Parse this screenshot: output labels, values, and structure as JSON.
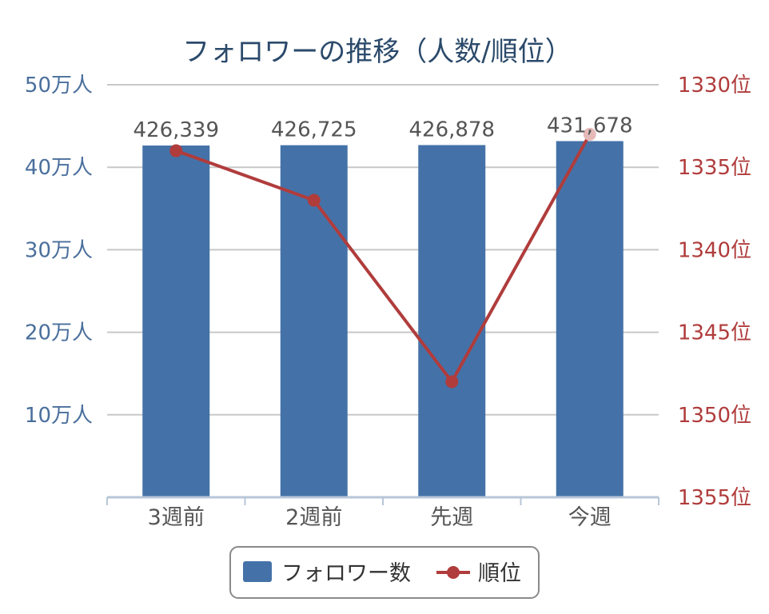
{
  "chart_data": {
    "type": "bar+line",
    "title": "フォロワーの推移（人数/順位）",
    "categories": [
      "3週前",
      "2週前",
      "先週",
      "今週"
    ],
    "left_axis": {
      "ticks": [
        "50万人",
        "40万人",
        "30万人",
        "20万人",
        "10万人"
      ],
      "tick_values": [
        500000,
        400000,
        300000,
        200000,
        100000
      ],
      "range": [
        0,
        500000
      ]
    },
    "right_axis": {
      "ticks": [
        "1330位",
        "1335位",
        "1340位",
        "1345位",
        "1350位",
        "1355位"
      ],
      "tick_values": [
        1330,
        1335,
        1340,
        1345,
        1350,
        1355
      ],
      "range": [
        1330,
        1355
      ],
      "inverted": true
    },
    "series": [
      {
        "name": "フォロワー数",
        "type": "bar",
        "values": [
          426339,
          426725,
          426878,
          431678
        ],
        "labels": [
          "426,339",
          "426,725",
          "426,878",
          "431,678"
        ],
        "color": "#4472a8"
      },
      {
        "name": "順位",
        "type": "line",
        "values": [
          1334,
          1337,
          1348,
          1333
        ],
        "color": "#b03c3c"
      }
    ],
    "grid": true,
    "legend": "bottom"
  }
}
